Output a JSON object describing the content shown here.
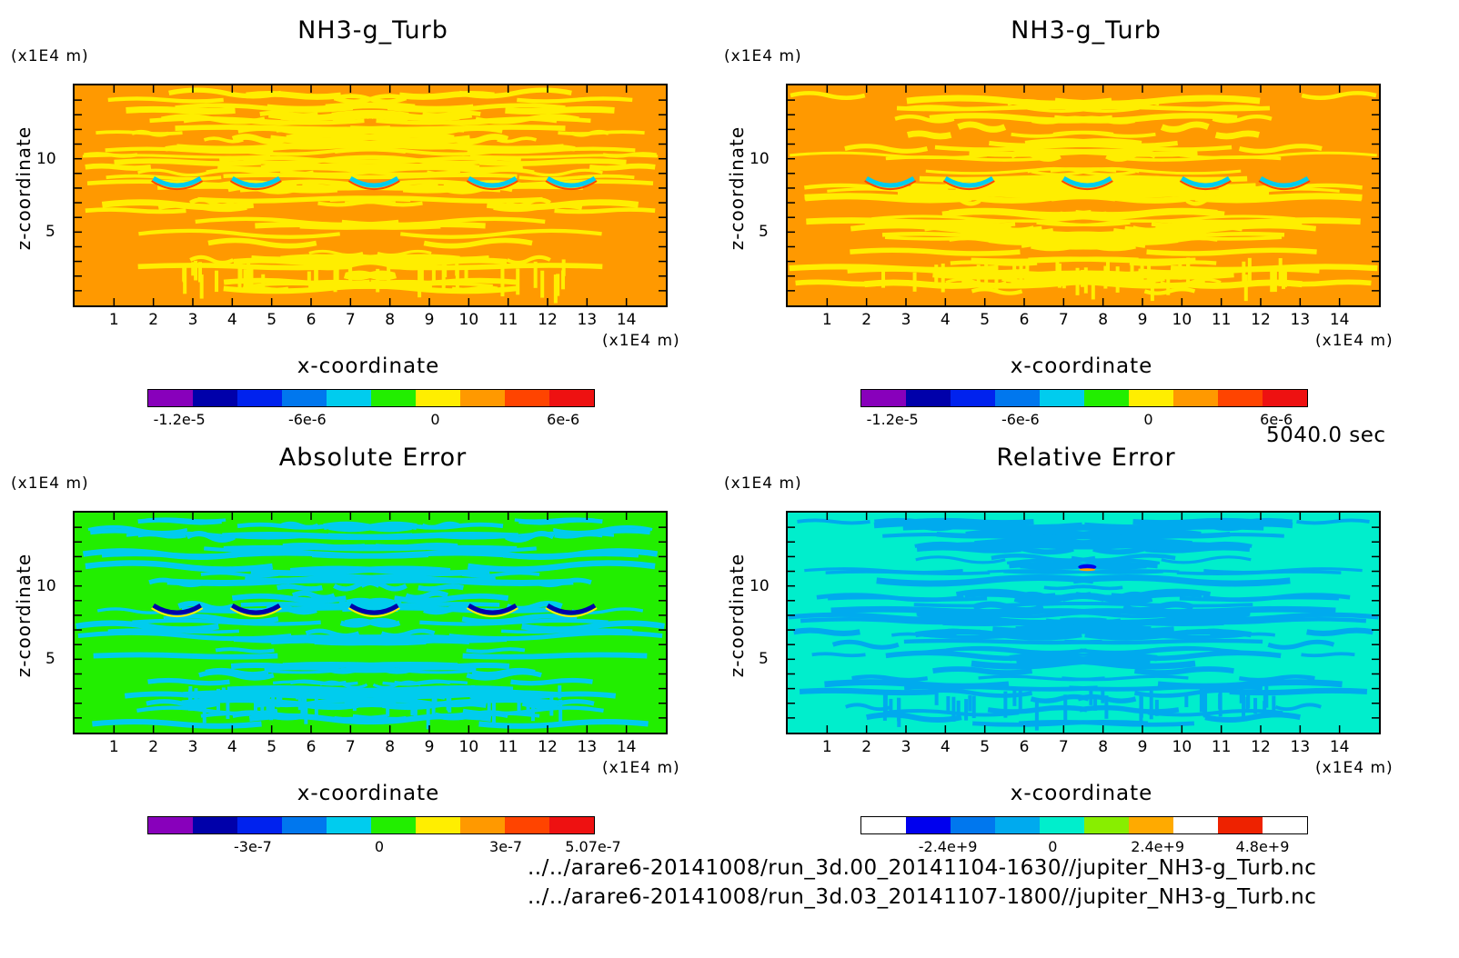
{
  "time_label": "5040.0 sec",
  "file_paths": [
    "../../arare6-20141008/run_3d.00_20141104-1630//jupiter_NH3-g_Turb.nc",
    "../../arare6-20141008/run_3d.03_20141107-1800//jupiter_NH3-g_Turb.nc"
  ],
  "chart_data": [
    {
      "type": "heatmap",
      "title": "NH3-g_Turb",
      "xlabel": "x-coordinate",
      "ylabel": "z-coordinate",
      "x_unit": "(x1E4 m)",
      "z_unit": "(x1E4 m)",
      "xlim": [
        0,
        15
      ],
      "ylim": [
        0,
        15
      ],
      "x_ticks": [
        "1",
        "2",
        "3",
        "4",
        "5",
        "6",
        "7",
        "8",
        "9",
        "10",
        "11",
        "12",
        "13",
        "14"
      ],
      "y_ticks": [
        "5",
        "10"
      ],
      "background": "#ff9900",
      "colorbar": {
        "colors": [
          "#8800bb",
          "#0000aa",
          "#0022ee",
          "#0077ee",
          "#00ccee",
          "#22ee00",
          "#ffee00",
          "#ff9900",
          "#ff4400",
          "#ee1111"
        ],
        "labels": [
          "-1.2e-5",
          "-6e-6",
          "0",
          "6e-6"
        ],
        "label_values": [
          -1.2e-05,
          -6e-06,
          0,
          6e-06
        ],
        "range": [
          -1.35e-05,
          7.4e-06
        ]
      }
    },
    {
      "type": "heatmap",
      "title": "NH3-g_Turb",
      "xlabel": "x-coordinate",
      "ylabel": "z-coordinate",
      "x_unit": "(x1E4 m)",
      "z_unit": "(x1E4 m)",
      "xlim": [
        0,
        15
      ],
      "ylim": [
        0,
        15
      ],
      "x_ticks": [
        "1",
        "2",
        "3",
        "4",
        "5",
        "6",
        "7",
        "8",
        "9",
        "10",
        "11",
        "12",
        "13",
        "14"
      ],
      "y_ticks": [
        "5",
        "10"
      ],
      "background": "#ff9900",
      "colorbar": {
        "colors": [
          "#8800bb",
          "#0000aa",
          "#0022ee",
          "#0077ee",
          "#00ccee",
          "#22ee00",
          "#ffee00",
          "#ff9900",
          "#ff4400",
          "#ee1111"
        ],
        "labels": [
          "-1.2e-5",
          "-6e-6",
          "0",
          "6e-6"
        ],
        "label_values": [
          -1.2e-05,
          -6e-06,
          0,
          6e-06
        ],
        "range": [
          -1.35e-05,
          7.4e-06
        ]
      }
    },
    {
      "type": "heatmap",
      "title": "Absolute Error",
      "xlabel": "x-coordinate",
      "ylabel": "z-coordinate",
      "x_unit": "(x1E4 m)",
      "z_unit": "(x1E4 m)",
      "xlim": [
        0,
        15
      ],
      "ylim": [
        0,
        15
      ],
      "x_ticks": [
        "1",
        "2",
        "3",
        "4",
        "5",
        "6",
        "7",
        "8",
        "9",
        "10",
        "11",
        "12",
        "13",
        "14"
      ],
      "y_ticks": [
        "5",
        "10"
      ],
      "background": "#22ee00",
      "colorbar": {
        "colors": [
          "#8800bb",
          "#0000aa",
          "#0022ee",
          "#0077ee",
          "#00ccee",
          "#22ee00",
          "#ffee00",
          "#ff9900",
          "#ff4400",
          "#ee1111"
        ],
        "labels": [
          "-3e-7",
          "0",
          "3e-7",
          "5.07e-7"
        ],
        "label_values": [
          -3e-07,
          0,
          3e-07,
          5.07e-07
        ],
        "range": [
          -5.5e-07,
          5.07e-07
        ]
      }
    },
    {
      "type": "heatmap",
      "title": "Relative Error",
      "xlabel": "x-coordinate",
      "ylabel": "z-coordinate",
      "x_unit": "(x1E4 m)",
      "z_unit": "(x1E4 m)",
      "xlim": [
        0,
        15
      ],
      "ylim": [
        0,
        15
      ],
      "x_ticks": [
        "1",
        "2",
        "3",
        "4",
        "5",
        "6",
        "7",
        "8",
        "9",
        "10",
        "11",
        "12",
        "13",
        "14"
      ],
      "y_ticks": [
        "5",
        "10"
      ],
      "background": "#00eecc",
      "colorbar": {
        "colors": [
          "#ffffff",
          "#0000ee",
          "#0077ee",
          "#00aaee",
          "#00eecc",
          "#88ee00",
          "#ffaa00",
          "#ffffff",
          "#ee2200",
          "#ffffff"
        ],
        "labels": [
          "-2.4e+9",
          "0",
          "2.4e+9",
          "4.8e+9"
        ],
        "label_values": [
          -2400000000.0,
          0,
          2400000000.0,
          4800000000.0
        ],
        "range": [
          -4400000000.0,
          5800000000.0
        ]
      }
    }
  ]
}
